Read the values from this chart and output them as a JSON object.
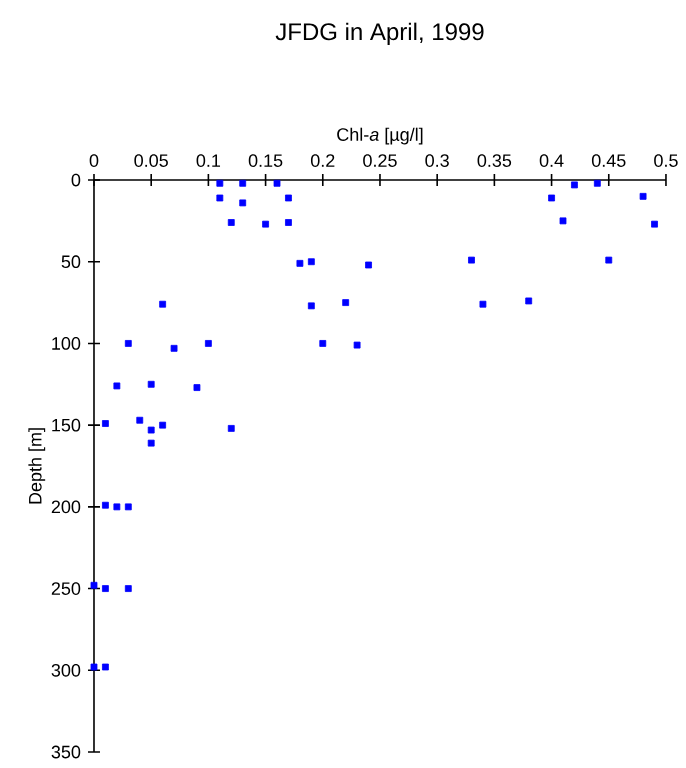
{
  "chart_data": {
    "type": "scatter",
    "title": "JFDG in April, 1999",
    "xlabel": "Chl-*a* [µg/l]",
    "ylabel": "Depth [m]",
    "xlim": [
      0,
      0.5
    ],
    "xticks": [
      0,
      0.05,
      0.1,
      0.15,
      0.2,
      0.25,
      0.3,
      0.35,
      0.4,
      0.45,
      0.5
    ],
    "ylim": [
      350,
      0
    ],
    "yticks": [
      0,
      50,
      100,
      150,
      200,
      250,
      300,
      350
    ],
    "marker": "square",
    "series": [
      {
        "color": "#0000ff",
        "x": [
          0.11,
          0.13,
          0.16,
          0.11,
          0.13,
          0.17,
          0.12,
          0.15,
          0.17,
          0.18,
          0.19,
          0.24,
          0.06,
          0.19,
          0.22,
          0.03,
          0.07,
          0.1,
          0.2,
          0.23,
          0.02,
          0.05,
          0.09,
          0.01,
          0.04,
          0.05,
          0.06,
          0.12,
          0.05,
          0.01,
          0.02,
          0.03,
          0.0,
          0.01,
          0.03,
          0.0,
          0.01,
          0.42,
          0.44,
          0.4,
          0.48,
          0.41,
          0.49,
          0.33,
          0.45,
          0.34,
          0.38
        ],
        "values": [
          2,
          2,
          2,
          11,
          14,
          11,
          26,
          27,
          26,
          51,
          50,
          52,
          76,
          77,
          75,
          100,
          103,
          100,
          100,
          101,
          126,
          125,
          127,
          149,
          147,
          153,
          150,
          152,
          161,
          199,
          200,
          200,
          248,
          250,
          250,
          298,
          298,
          3,
          2,
          11,
          10,
          25,
          27,
          49,
          49,
          76,
          74
        ]
      }
    ]
  }
}
